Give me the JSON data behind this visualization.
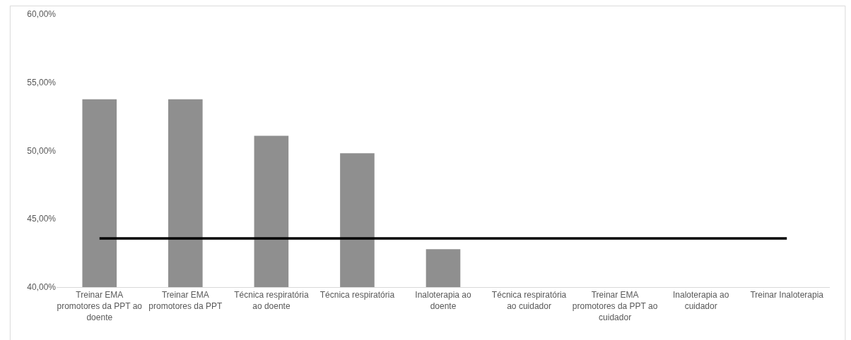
{
  "chart_data": {
    "type": "bar",
    "categories": [
      "Treinar EMA promotores da PPT ao doente",
      "Treinar EMA promotores da PPT",
      "Técnica respiratória ao doente",
      "Técnica respiratória",
      "Inaloterapia ao doente",
      "Técnica respiratória ao cuidador",
      "Treinar EMA promotores da PPT ao cuidador",
      "Inaloterapia ao cuidador",
      "Treinar Inaloterapia"
    ],
    "series": [
      {
        "color": "#8f8f8f",
        "values": [
          53.76,
          53.76,
          51.08,
          49.81,
          42.78,
          null,
          null,
          null,
          null
        ]
      },
      {
        "type": "line",
        "color": "#000000",
        "marker": "none",
        "values": [
          43.56,
          43.56,
          43.56,
          43.56,
          43.56,
          43.56,
          43.56,
          43.56,
          43.56
        ]
      }
    ],
    "ylim": [
      40,
      60
    ],
    "yticks": [
      {
        "value": 40,
        "label": "40,00%"
      },
      {
        "value": 45,
        "label": "45,00%"
      },
      {
        "value": 50,
        "label": "50,00%"
      },
      {
        "value": 55,
        "label": "55,00%"
      },
      {
        "value": 60,
        "label": "60,00%"
      }
    ],
    "grid": false
  }
}
